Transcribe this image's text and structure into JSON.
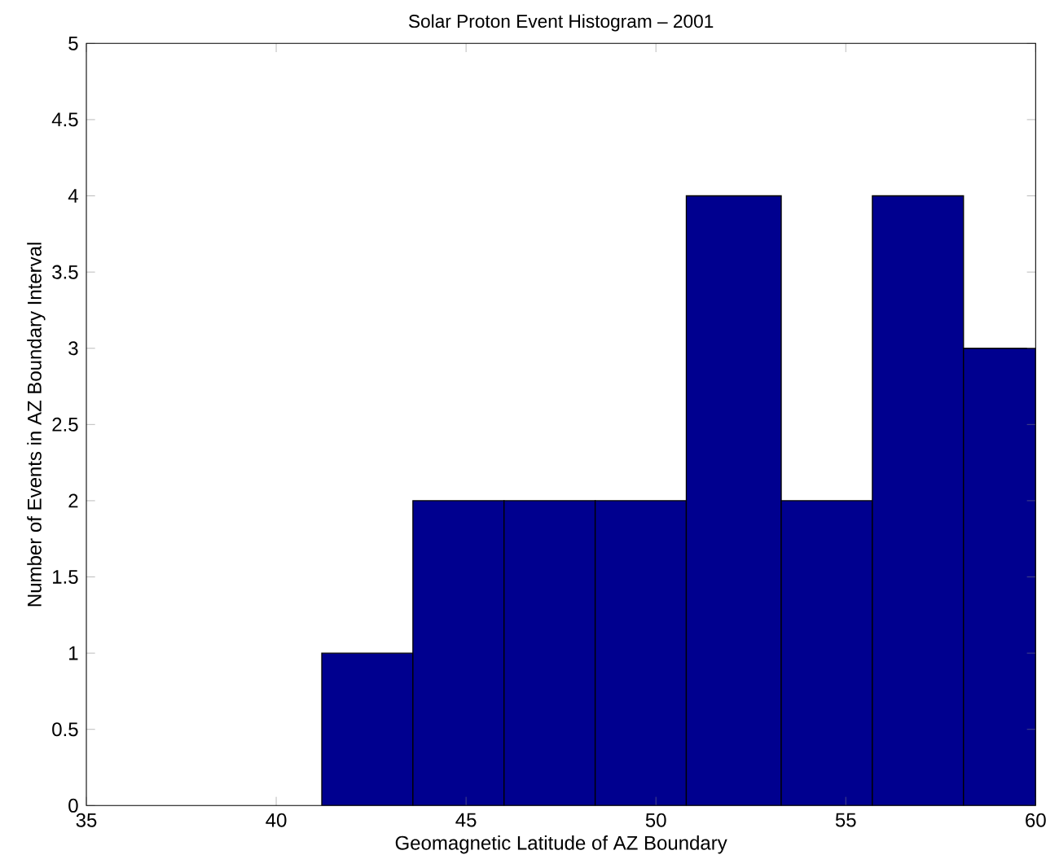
{
  "chart_data": {
    "type": "histogram",
    "title": "Solar Proton Event Histogram – 2001",
    "xlabel": "Geomagnetic Latitude of AZ Boundary",
    "ylabel": "Number of Events in AZ Boundary Interval",
    "bins": [
      41.2,
      43.6,
      46.0,
      48.4,
      50.8,
      53.3,
      55.7,
      58.1,
      60
    ],
    "values": [
      1,
      2,
      2,
      2,
      4,
      2,
      4,
      3
    ],
    "color": "#00008f",
    "xlim": [
      35,
      60
    ],
    "ylim": [
      0,
      5
    ],
    "xticks": [
      35,
      40,
      45,
      50,
      55,
      60
    ],
    "yticks": [
      0,
      0.5,
      1,
      1.5,
      2,
      2.5,
      3,
      3.5,
      4,
      4.5,
      5
    ]
  }
}
